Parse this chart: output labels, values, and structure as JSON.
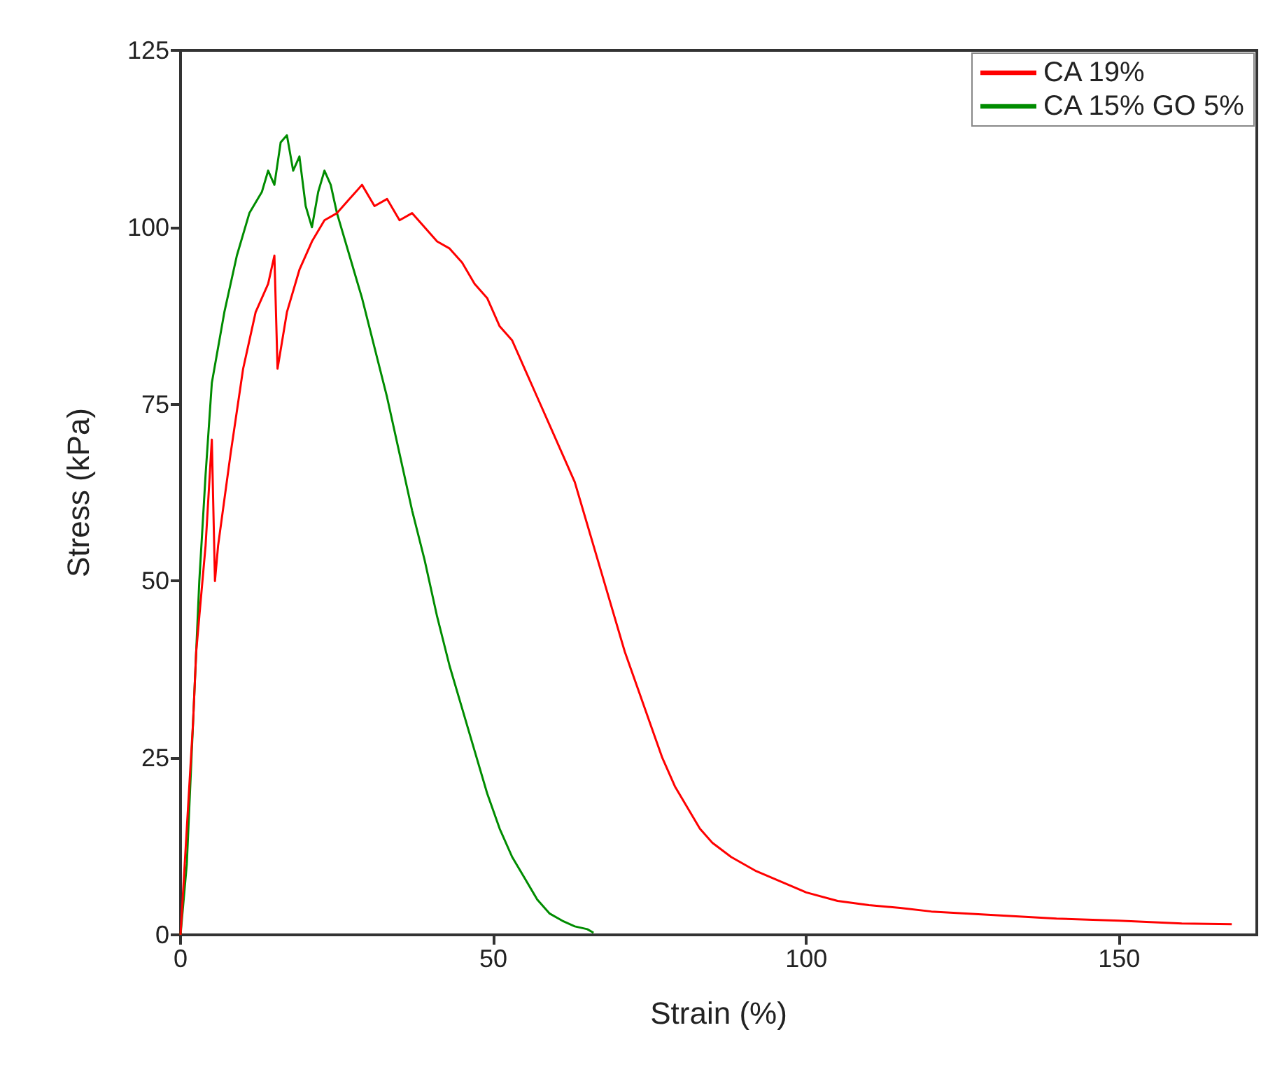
{
  "chart_data": {
    "type": "line",
    "xlabel": "Strain (%)",
    "ylabel": "Stress (kPa)",
    "xlim": [
      0,
      172
    ],
    "xticks": [
      0,
      50,
      100,
      150
    ],
    "ylim": [
      0,
      125
    ],
    "yticks": [
      0,
      25,
      50,
      75,
      100,
      125
    ],
    "grid": false,
    "legend": "top right",
    "marker": "none",
    "line_style": "solid",
    "series": [
      {
        "name": "CA 19%",
        "color": "#ff0000",
        "x": [
          0,
          1,
          2,
          2.5,
          3,
          4,
          5,
          5.5,
          6,
          8,
          10,
          12,
          14,
          15,
          15.5,
          17,
          19,
          21,
          23,
          25,
          27,
          29,
          31,
          33,
          35,
          37,
          39,
          41,
          43,
          45,
          47,
          49,
          51,
          53,
          55,
          57,
          59,
          61,
          63,
          65,
          67,
          69,
          71,
          73,
          75,
          77,
          79,
          81,
          83,
          85,
          88,
          92,
          96,
          100,
          105,
          110,
          115,
          120,
          130,
          140,
          150,
          160,
          168
        ],
        "values": [
          0,
          15,
          30,
          40,
          45,
          55,
          70,
          50,
          55,
          68,
          80,
          88,
          92,
          96,
          80,
          88,
          94,
          98,
          101,
          102,
          104,
          106,
          103,
          104,
          101,
          102,
          100,
          98,
          97,
          95,
          92,
          90,
          86,
          84,
          80,
          76,
          72,
          68,
          64,
          58,
          52,
          46,
          40,
          35,
          30,
          25,
          21,
          18,
          15,
          13,
          11,
          9,
          7.5,
          6,
          4.8,
          4.2,
          3.8,
          3.3,
          2.8,
          2.3,
          2,
          1.6,
          1.5
        ]
      },
      {
        "name": "CA 15% GO 5%",
        "color": "#008c00",
        "x": [
          0,
          1,
          2,
          3,
          4,
          5,
          7,
          9,
          11,
          13,
          14,
          15,
          16,
          17,
          18,
          19,
          20,
          21,
          22,
          23,
          24,
          25,
          27,
          29,
          31,
          33,
          35,
          37,
          39,
          41,
          43,
          45,
          47,
          49,
          51,
          53,
          55,
          57,
          59,
          61,
          63,
          65,
          66
        ],
        "values": [
          0,
          10,
          30,
          50,
          65,
          78,
          88,
          96,
          102,
          105,
          108,
          106,
          112,
          113,
          108,
          110,
          103,
          100,
          105,
          108,
          106,
          102,
          96,
          90,
          83,
          76,
          68,
          60,
          53,
          45,
          38,
          32,
          26,
          20,
          15,
          11,
          8,
          5,
          3,
          2,
          1.2,
          0.8,
          0.3
        ]
      }
    ]
  }
}
